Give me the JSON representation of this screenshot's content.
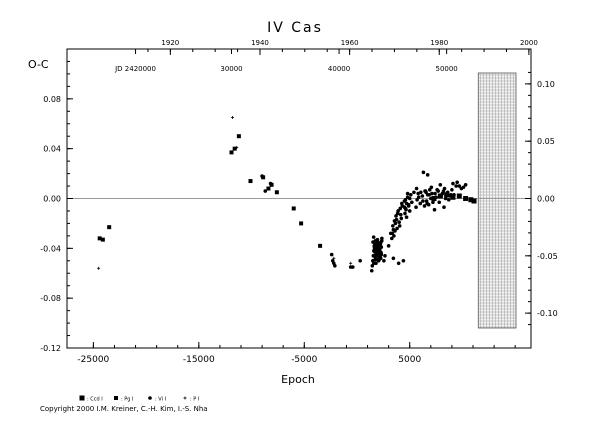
{
  "chart_data": {
    "type": "scatter",
    "title": "IV Cas",
    "xlabel": "Epoch",
    "ylabel": "O-C",
    "xlim": [
      -27500,
      16500
    ],
    "ylim": [
      -0.12,
      0.12
    ],
    "x_ticks": [
      "-25000",
      "-15000",
      "-5000",
      "5000"
    ],
    "x_tick_values": [
      -25000,
      -15000,
      -5000,
      5000
    ],
    "y_ticks_left": [
      "0.08",
      "0.04",
      "0.00",
      "-0.04",
      "-0.08",
      "-0.12"
    ],
    "y_tick_values_left": [
      0.08,
      0.04,
      0.0,
      -0.04,
      -0.08,
      -0.12
    ],
    "y_ticks_right": [
      "0.10",
      "0.05",
      "0.00",
      "-0.05",
      "-0.10"
    ],
    "y_tick_values_right": [
      0.1,
      0.05,
      0.0,
      -0.05,
      -0.1
    ],
    "top_year_ticks": [
      "1920",
      "1940",
      "1960",
      "1980",
      "2000"
    ],
    "top_year_epochs": [
      -17700,
      -9200,
      -700,
      7800,
      16300
    ],
    "jd_labels": [
      "JD 2420000",
      "30000",
      "40000",
      "50000"
    ],
    "jd_label_epochs": [
      -21000,
      -11900,
      -1700,
      8500
    ],
    "zero_line": 0.0,
    "future_region_start_epoch": 11500,
    "legend": [
      "Ccd I",
      "Pg I",
      "Vi I",
      "P I"
    ],
    "legend_markers": [
      "square-filled",
      "square-small",
      "circle",
      "plus"
    ],
    "series": [
      {
        "name": "Ccd I",
        "marker": "square-filled",
        "x": [
          7300,
          7900,
          8500,
          9100,
          9700,
          10300,
          10800,
          11100
        ],
        "y": [
          0.0,
          0.002,
          0.003,
          0.001,
          0.002,
          0.0,
          -0.001,
          -0.002
        ]
      },
      {
        "name": "Pg I",
        "marker": "square-small",
        "x": [
          -24400,
          -24100,
          -23500,
          -11900,
          -11600,
          -11200,
          -10100,
          -8900,
          -8400,
          -8100,
          -7600,
          -6000,
          -5300,
          -3500
        ],
        "y": [
          -0.032,
          -0.033,
          -0.023,
          0.037,
          0.04,
          0.05,
          0.014,
          0.017,
          0.008,
          0.011,
          0.005,
          -0.008,
          -0.02,
          -0.038
        ]
      },
      {
        "name": "Vi I",
        "marker": "circle",
        "x": [
          -9000,
          -8700,
          -8200,
          -2400,
          -2300,
          -2200,
          -2100,
          -600,
          -400,
          300,
          1400,
          1450,
          1500,
          1550,
          1600,
          1650,
          1700,
          1750,
          1800,
          1850,
          1900,
          1950,
          2000,
          2050,
          2100,
          2150,
          2200,
          2250,
          2300,
          2350,
          1520,
          1580,
          1640,
          1700,
          1760,
          1820,
          1880,
          1940,
          2000,
          2060,
          2120,
          2180,
          2240,
          2300,
          2360,
          1600,
          1700,
          1800,
          1900,
          2000,
          2100,
          2200,
          2300,
          1650,
          1750,
          1850,
          1950,
          2050,
          2150,
          2250,
          2550,
          2650,
          3000,
          3200,
          3400,
          3500,
          3550,
          3600,
          3700,
          3800,
          3900,
          4000,
          4100,
          4200,
          3300,
          3450,
          3650,
          3850,
          4050,
          4250,
          3350,
          3750,
          4150,
          4300,
          3450,
          3950,
          4400,
          4500,
          4550,
          4600,
          4650,
          4700,
          4800,
          4900,
          5000,
          5100,
          4500,
          4600,
          4700,
          4800,
          4900,
          5000,
          5200,
          5400,
          5600,
          5700,
          5800,
          6000,
          6200,
          6400,
          6500,
          6600,
          6700,
          6800,
          6900,
          7000,
          7100,
          7200,
          5650,
          5850,
          6050,
          6250,
          6450,
          6650,
          6850,
          7050,
          7250,
          7400,
          7600,
          7800,
          8000,
          8200,
          8400,
          8600,
          8800,
          9000,
          9200,
          9400,
          7500,
          7700,
          7900,
          8100,
          8300,
          8500,
          8700,
          8900,
          9100,
          6300,
          6700,
          9500,
          9700,
          9900,
          10100,
          10300,
          6550,
          7350,
          8250
        ],
        "y": [
          0.018,
          0.006,
          0.012,
          -0.045,
          -0.05,
          -0.052,
          -0.054,
          -0.055,
          -0.055,
          -0.05,
          -0.058,
          -0.054,
          -0.05,
          -0.046,
          -0.042,
          -0.039,
          -0.043,
          -0.048,
          -0.052,
          -0.045,
          -0.04,
          -0.036,
          -0.044,
          -0.05,
          -0.041,
          -0.037,
          -0.047,
          -0.043,
          -0.039,
          -0.034,
          -0.035,
          -0.031,
          -0.038,
          -0.046,
          -0.049,
          -0.041,
          -0.035,
          -0.033,
          -0.038,
          -0.045,
          -0.047,
          -0.04,
          -0.036,
          -0.044,
          -0.032,
          -0.052,
          -0.037,
          -0.048,
          -0.043,
          -0.035,
          -0.049,
          -0.038,
          -0.045,
          -0.041,
          -0.034,
          -0.046,
          -0.039,
          -0.042,
          -0.036,
          -0.048,
          -0.05,
          -0.046,
          -0.038,
          -0.028,
          -0.022,
          -0.03,
          -0.018,
          -0.026,
          -0.014,
          -0.024,
          -0.01,
          -0.019,
          -0.008,
          -0.016,
          -0.032,
          -0.025,
          -0.02,
          -0.012,
          -0.022,
          -0.004,
          -0.028,
          -0.017,
          -0.013,
          -0.006,
          -0.048,
          -0.052,
          -0.05,
          -0.007,
          -0.012,
          -0.001,
          -0.009,
          -0.015,
          0.001,
          -0.005,
          -0.01,
          0.003,
          -0.002,
          -0.008,
          -0.004,
          0.004,
          -0.006,
          0.0,
          -0.003,
          0.005,
          -0.007,
          -0.001,
          0.004,
          -0.004,
          0.002,
          -0.006,
          0.006,
          -0.002,
          0.003,
          -0.005,
          0.007,
          0.0,
          0.004,
          -0.003,
          0.008,
          0.001,
          0.005,
          -0.002,
          0.006,
          -0.004,
          0.003,
          0.009,
          -0.001,
          0.004,
          0.007,
          -0.003,
          0.002,
          0.006,
          0.0,
          0.005,
          0.002,
          0.007,
          0.003,
          0.01,
          0.001,
          0.006,
          0.011,
          0.004,
          0.008,
          0.002,
          -0.001,
          0.003,
          0.012,
          0.021,
          0.019,
          0.013,
          0.01,
          0.008,
          0.009,
          0.011,
          0.005,
          -0.009,
          -0.007
        ]
      },
      {
        "name": "P I",
        "marker": "plus",
        "x": [
          -24500,
          -11800,
          -11400,
          -2200,
          -600
        ],
        "y": [
          -0.056,
          0.065,
          0.041,
          -0.048,
          -0.052
        ]
      }
    ]
  },
  "copyright": "Copyright 2000 I.M. Kreiner, C.-H. Kim, I.-S. Nha"
}
